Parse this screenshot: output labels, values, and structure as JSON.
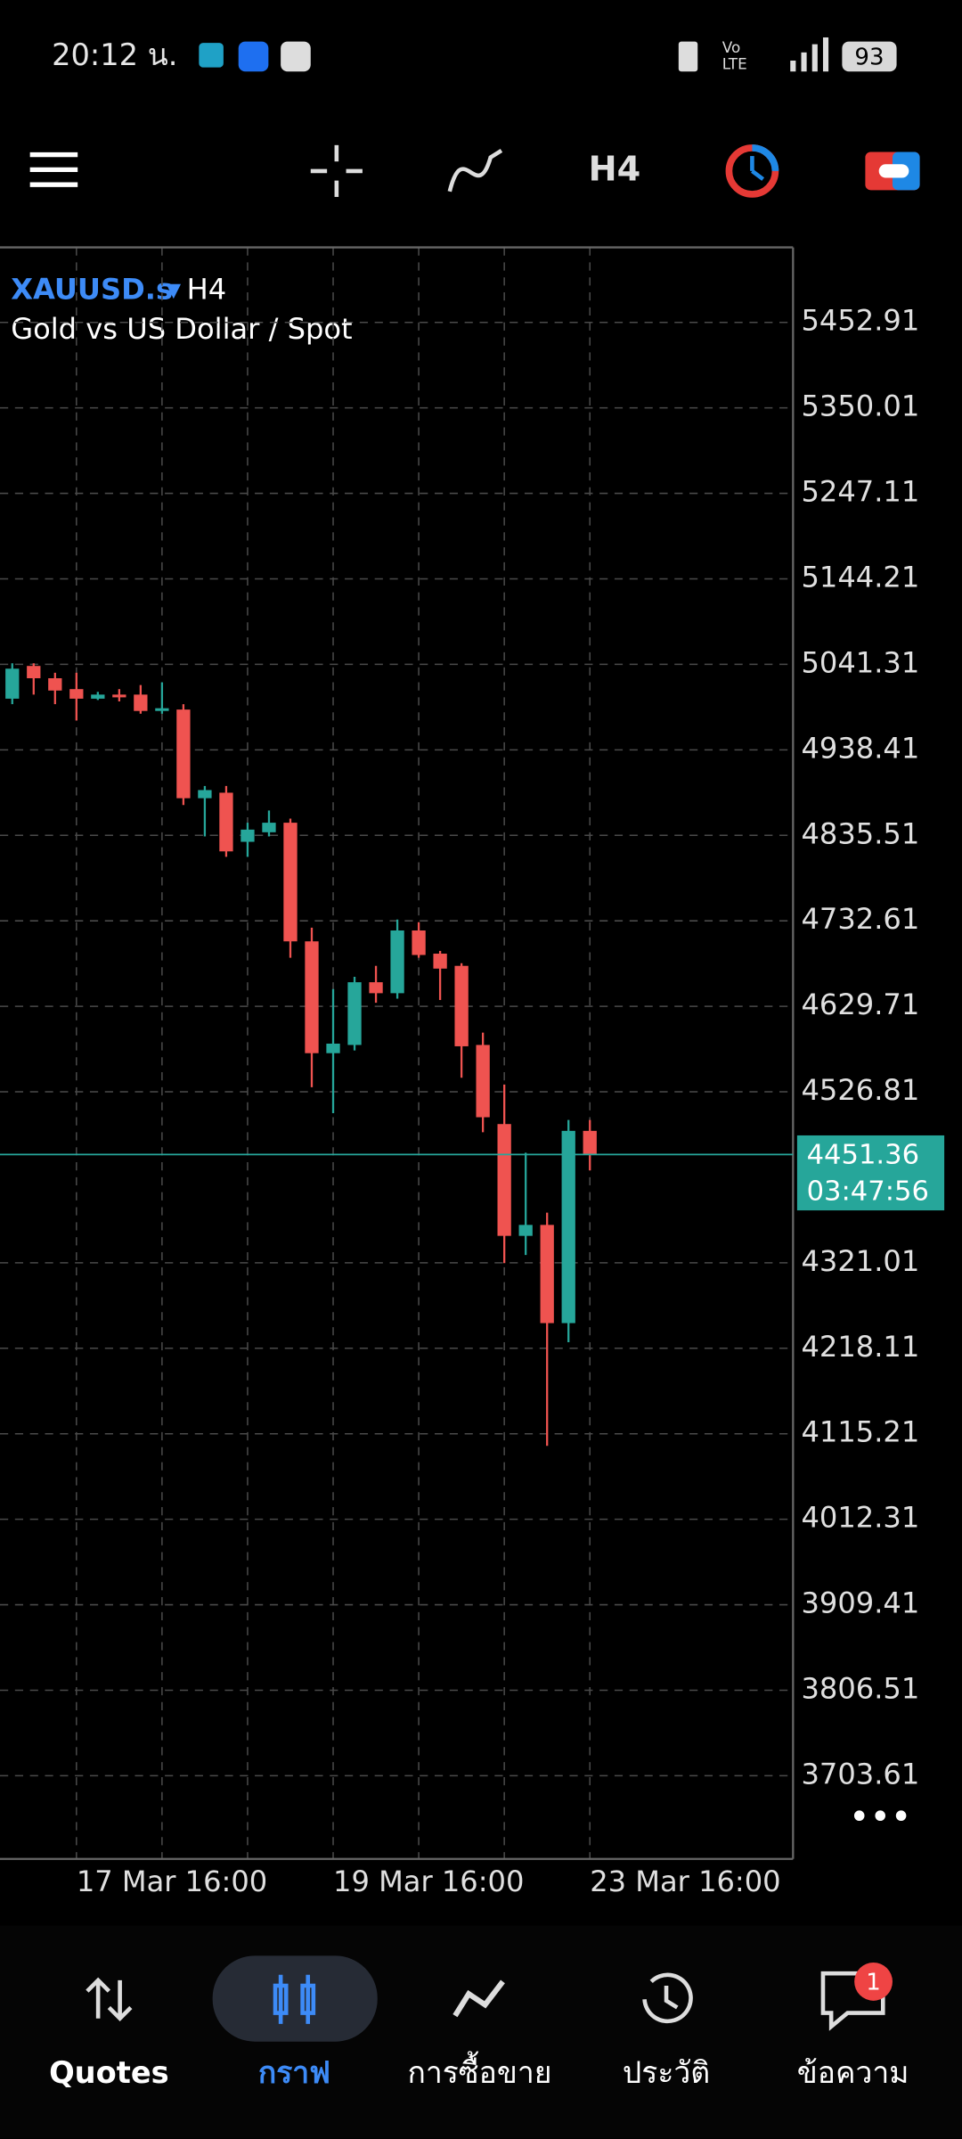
{
  "status_bar": {
    "time": "20:12 น.",
    "battery": "93"
  },
  "toolbar": {
    "timeframe": "H4"
  },
  "chart": {
    "type": "candlestick",
    "symbol": "XAUUSD.s",
    "timeframe": "H4",
    "description": "Gold vs US Dollar / Spot",
    "categories": [
      null,
      null,
      null,
      "17 Mar 16:00",
      null,
      null,
      null,
      null,
      null,
      null,
      null,
      null,
      null,
      null,
      null,
      "19 Mar 16:00",
      null,
      null,
      null,
      null,
      null,
      null,
      null,
      null,
      null,
      null,
      null,
      "23 Mar 16:00"
    ],
    "open": [
      5000.0,
      5039.4,
      5024.6,
      5011.5,
      5000.0,
      5004.9,
      5004.9,
      4985.2,
      4986.9,
      4880.2,
      4886.8,
      4827.7,
      4839.2,
      4850.7,
      4707.9,
      4573.3,
      4583.2,
      4658.7,
      4645.5,
      4721.0,
      4693.1,
      4678.4,
      4583.2,
      4488.0,
      4353.4,
      4366.6,
      4248.4,
      4479.8
    ],
    "high": [
      5042.6,
      5042.6,
      5031.2,
      5031.2,
      5008.2,
      5011.5,
      5016.4,
      5019.7,
      4993.4,
      4894.9,
      4894.9,
      4850.7,
      4865.4,
      4855.6,
      4724.3,
      4650.5,
      4665.2,
      4678.4,
      4734.2,
      4730.9,
      4696.4,
      4681.6,
      4598.0,
      4535.6,
      4453.5,
      4381.3,
      4492.9,
      4492.9
    ],
    "low": [
      4993.4,
      5004.9,
      4993.4,
      4973.7,
      4998.4,
      4996.7,
      4981.9,
      4981.9,
      4872.0,
      4834.2,
      4809.6,
      4809.6,
      4834.2,
      4688.2,
      4532.3,
      4501.1,
      4576.6,
      4634.0,
      4639.0,
      4688.2,
      4637.3,
      4543.8,
      4478.2,
      4320.6,
      4330.4,
      4100.7,
      4225.4,
      4432.2
    ],
    "close": [
      5036.1,
      5024.6,
      5009.8,
      5000.0,
      5004.9,
      5001.6,
      4985.2,
      4988.5,
      4880.2,
      4890.0,
      4816.2,
      4842.4,
      4850.7,
      4707.9,
      4573.3,
      4584.8,
      4658.7,
      4645.5,
      4721.0,
      4691.5,
      4675.1,
      4581.6,
      4496.2,
      4353.4,
      4366.6,
      4248.4,
      4479.8,
      4451.36
    ],
    "up_color": "#26a69a",
    "down_color": "#ef5350",
    "ylim": [
      3603.5,
      5543.2
    ],
    "yticks": [
      5452.91,
      5350.01,
      5247.11,
      5144.21,
      5041.31,
      4938.41,
      4835.51,
      4732.61,
      4629.71,
      4526.81,
      4321.01,
      4218.11,
      4115.21,
      4012.31,
      3909.41,
      3806.51,
      3703.61
    ],
    "grid": true,
    "last_price": 4451.36,
    "countdown": "03:47:56"
  },
  "nav": {
    "items": [
      {
        "label": "Quotes"
      },
      {
        "label": "กราฟ"
      },
      {
        "label": "การซื้อขาย"
      },
      {
        "label": "ประวัติ"
      },
      {
        "label": "ข้อความ"
      }
    ],
    "badge": 1
  }
}
